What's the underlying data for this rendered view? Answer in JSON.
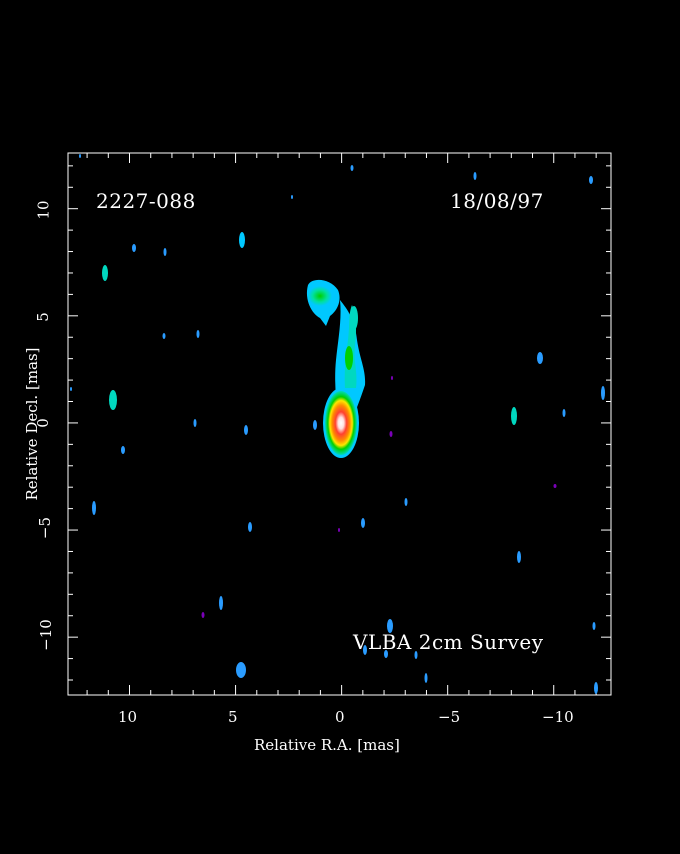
{
  "image": {
    "source_name": "2227-088",
    "epoch": "18/08/97",
    "survey": "VLBA 2cm Survey",
    "xlabel": "Relative R.A. [mas]",
    "ylabel": "Relative Decl. [mas]",
    "x_ticks": [
      "10",
      "5",
      "0",
      "−5",
      "−10"
    ],
    "y_ticks": [
      "10",
      "5",
      "0",
      "−5",
      "−10"
    ],
    "x_range_mas": [
      12.9,
      -12.7
    ],
    "y_range_mas": [
      -12.7,
      12.6
    ],
    "colormap": [
      "#7a00b8",
      "#2a6cff",
      "#00c8ff",
      "#00e0a0",
      "#00d000",
      "#ffff00",
      "#ff9900",
      "#ff2200",
      "#ffffff"
    ],
    "background": "#000000"
  }
}
